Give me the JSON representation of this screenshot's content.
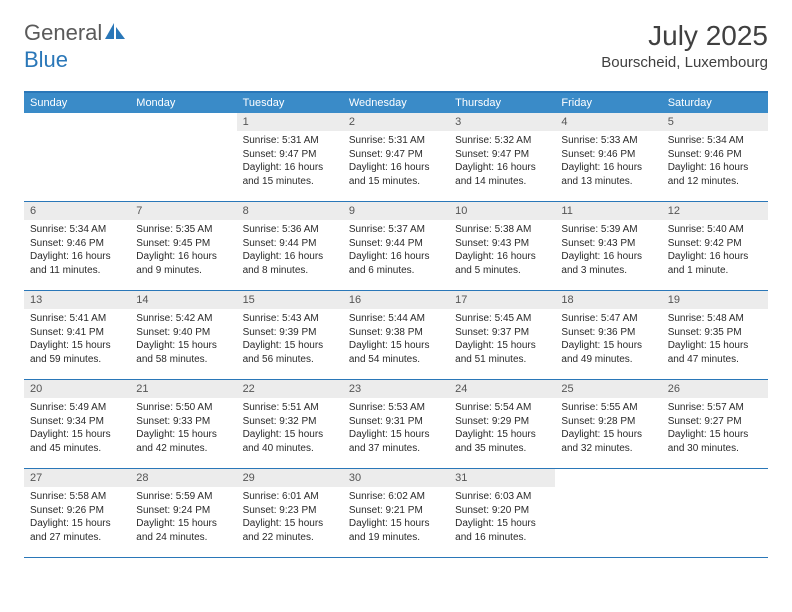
{
  "branding": {
    "logo_text_grey": "General",
    "logo_text_blue": "Blue"
  },
  "header": {
    "month_title": "July 2025",
    "location": "Bourscheid, Luxembourg"
  },
  "colors": {
    "header_bar": "#3a8bc8",
    "border": "#2a77b8",
    "daynum_bg": "#ececec",
    "text_grey": "#5a5a5a",
    "text_body": "#2a2a2a",
    "background": "#ffffff"
  },
  "day_names": [
    "Sunday",
    "Monday",
    "Tuesday",
    "Wednesday",
    "Thursday",
    "Friday",
    "Saturday"
  ],
  "weeks": [
    [
      {
        "blank": true
      },
      {
        "blank": true
      },
      {
        "num": "1",
        "sunrise": "Sunrise: 5:31 AM",
        "sunset": "Sunset: 9:47 PM",
        "daylight": "Daylight: 16 hours and 15 minutes."
      },
      {
        "num": "2",
        "sunrise": "Sunrise: 5:31 AM",
        "sunset": "Sunset: 9:47 PM",
        "daylight": "Daylight: 16 hours and 15 minutes."
      },
      {
        "num": "3",
        "sunrise": "Sunrise: 5:32 AM",
        "sunset": "Sunset: 9:47 PM",
        "daylight": "Daylight: 16 hours and 14 minutes."
      },
      {
        "num": "4",
        "sunrise": "Sunrise: 5:33 AM",
        "sunset": "Sunset: 9:46 PM",
        "daylight": "Daylight: 16 hours and 13 minutes."
      },
      {
        "num": "5",
        "sunrise": "Sunrise: 5:34 AM",
        "sunset": "Sunset: 9:46 PM",
        "daylight": "Daylight: 16 hours and 12 minutes."
      }
    ],
    [
      {
        "num": "6",
        "sunrise": "Sunrise: 5:34 AM",
        "sunset": "Sunset: 9:46 PM",
        "daylight": "Daylight: 16 hours and 11 minutes."
      },
      {
        "num": "7",
        "sunrise": "Sunrise: 5:35 AM",
        "sunset": "Sunset: 9:45 PM",
        "daylight": "Daylight: 16 hours and 9 minutes."
      },
      {
        "num": "8",
        "sunrise": "Sunrise: 5:36 AM",
        "sunset": "Sunset: 9:44 PM",
        "daylight": "Daylight: 16 hours and 8 minutes."
      },
      {
        "num": "9",
        "sunrise": "Sunrise: 5:37 AM",
        "sunset": "Sunset: 9:44 PM",
        "daylight": "Daylight: 16 hours and 6 minutes."
      },
      {
        "num": "10",
        "sunrise": "Sunrise: 5:38 AM",
        "sunset": "Sunset: 9:43 PM",
        "daylight": "Daylight: 16 hours and 5 minutes."
      },
      {
        "num": "11",
        "sunrise": "Sunrise: 5:39 AM",
        "sunset": "Sunset: 9:43 PM",
        "daylight": "Daylight: 16 hours and 3 minutes."
      },
      {
        "num": "12",
        "sunrise": "Sunrise: 5:40 AM",
        "sunset": "Sunset: 9:42 PM",
        "daylight": "Daylight: 16 hours and 1 minute."
      }
    ],
    [
      {
        "num": "13",
        "sunrise": "Sunrise: 5:41 AM",
        "sunset": "Sunset: 9:41 PM",
        "daylight": "Daylight: 15 hours and 59 minutes."
      },
      {
        "num": "14",
        "sunrise": "Sunrise: 5:42 AM",
        "sunset": "Sunset: 9:40 PM",
        "daylight": "Daylight: 15 hours and 58 minutes."
      },
      {
        "num": "15",
        "sunrise": "Sunrise: 5:43 AM",
        "sunset": "Sunset: 9:39 PM",
        "daylight": "Daylight: 15 hours and 56 minutes."
      },
      {
        "num": "16",
        "sunrise": "Sunrise: 5:44 AM",
        "sunset": "Sunset: 9:38 PM",
        "daylight": "Daylight: 15 hours and 54 minutes."
      },
      {
        "num": "17",
        "sunrise": "Sunrise: 5:45 AM",
        "sunset": "Sunset: 9:37 PM",
        "daylight": "Daylight: 15 hours and 51 minutes."
      },
      {
        "num": "18",
        "sunrise": "Sunrise: 5:47 AM",
        "sunset": "Sunset: 9:36 PM",
        "daylight": "Daylight: 15 hours and 49 minutes."
      },
      {
        "num": "19",
        "sunrise": "Sunrise: 5:48 AM",
        "sunset": "Sunset: 9:35 PM",
        "daylight": "Daylight: 15 hours and 47 minutes."
      }
    ],
    [
      {
        "num": "20",
        "sunrise": "Sunrise: 5:49 AM",
        "sunset": "Sunset: 9:34 PM",
        "daylight": "Daylight: 15 hours and 45 minutes."
      },
      {
        "num": "21",
        "sunrise": "Sunrise: 5:50 AM",
        "sunset": "Sunset: 9:33 PM",
        "daylight": "Daylight: 15 hours and 42 minutes."
      },
      {
        "num": "22",
        "sunrise": "Sunrise: 5:51 AM",
        "sunset": "Sunset: 9:32 PM",
        "daylight": "Daylight: 15 hours and 40 minutes."
      },
      {
        "num": "23",
        "sunrise": "Sunrise: 5:53 AM",
        "sunset": "Sunset: 9:31 PM",
        "daylight": "Daylight: 15 hours and 37 minutes."
      },
      {
        "num": "24",
        "sunrise": "Sunrise: 5:54 AM",
        "sunset": "Sunset: 9:29 PM",
        "daylight": "Daylight: 15 hours and 35 minutes."
      },
      {
        "num": "25",
        "sunrise": "Sunrise: 5:55 AM",
        "sunset": "Sunset: 9:28 PM",
        "daylight": "Daylight: 15 hours and 32 minutes."
      },
      {
        "num": "26",
        "sunrise": "Sunrise: 5:57 AM",
        "sunset": "Sunset: 9:27 PM",
        "daylight": "Daylight: 15 hours and 30 minutes."
      }
    ],
    [
      {
        "num": "27",
        "sunrise": "Sunrise: 5:58 AM",
        "sunset": "Sunset: 9:26 PM",
        "daylight": "Daylight: 15 hours and 27 minutes."
      },
      {
        "num": "28",
        "sunrise": "Sunrise: 5:59 AM",
        "sunset": "Sunset: 9:24 PM",
        "daylight": "Daylight: 15 hours and 24 minutes."
      },
      {
        "num": "29",
        "sunrise": "Sunrise: 6:01 AM",
        "sunset": "Sunset: 9:23 PM",
        "daylight": "Daylight: 15 hours and 22 minutes."
      },
      {
        "num": "30",
        "sunrise": "Sunrise: 6:02 AM",
        "sunset": "Sunset: 9:21 PM",
        "daylight": "Daylight: 15 hours and 19 minutes."
      },
      {
        "num": "31",
        "sunrise": "Sunrise: 6:03 AM",
        "sunset": "Sunset: 9:20 PM",
        "daylight": "Daylight: 15 hours and 16 minutes."
      },
      {
        "blank": true
      },
      {
        "blank": true
      }
    ]
  ]
}
